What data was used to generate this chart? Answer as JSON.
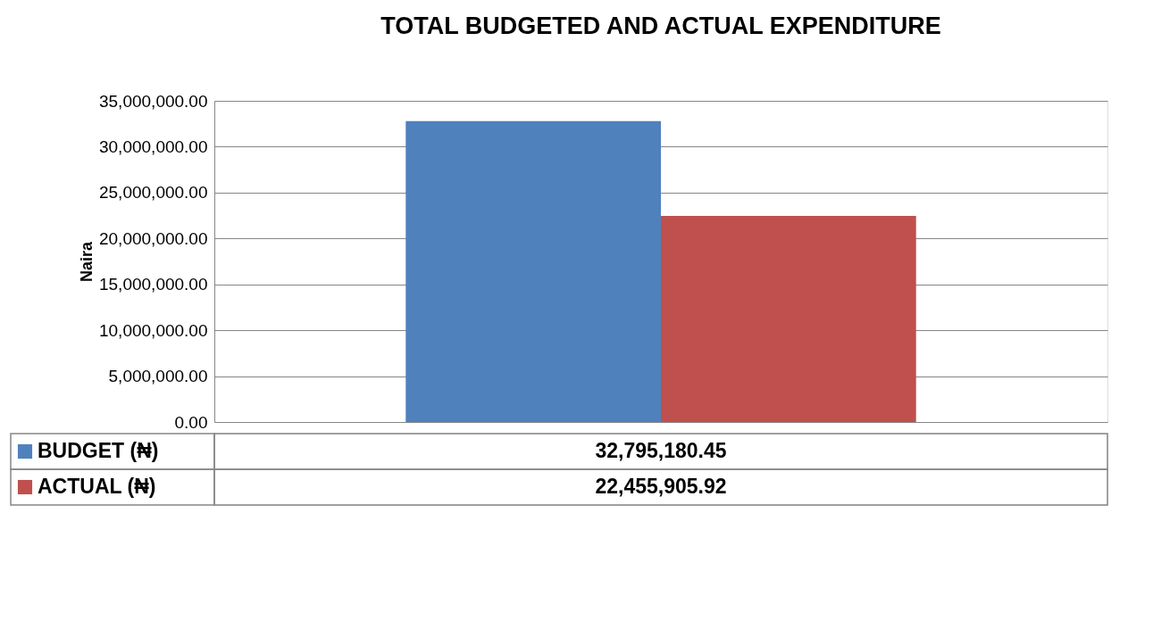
{
  "chart_data": {
    "type": "bar",
    "title": "TOTAL BUDGETED AND ACTUAL EXPENDITURE",
    "ylabel": "Naira",
    "categories": [
      null
    ],
    "series": [
      {
        "name": "BUDGET (₦)",
        "color": "#4f81bd",
        "values": [
          32795180.45
        ],
        "value_labels": [
          "32,795,180.45"
        ]
      },
      {
        "name": "ACTUAL (₦)",
        "color": "#c0504d",
        "values": [
          22455905.92
        ],
        "value_labels": [
          "22,455,905.92"
        ]
      }
    ],
    "ylim": [
      0,
      35000000
    ],
    "yticks": [
      {
        "value": 0,
        "label": "0.00"
      },
      {
        "value": 5000000,
        "label": "5,000,000.00"
      },
      {
        "value": 10000000,
        "label": "10,000,000.00"
      },
      {
        "value": 15000000,
        "label": "15,000,000.00"
      },
      {
        "value": 20000000,
        "label": "20,000,000.00"
      },
      {
        "value": 25000000,
        "label": "25,000,000.00"
      },
      {
        "value": 30000000,
        "label": "30,000,000.00"
      },
      {
        "value": 35000000,
        "label": "35,000,000.00"
      }
    ],
    "grid": "y",
    "legend": "bottom"
  }
}
